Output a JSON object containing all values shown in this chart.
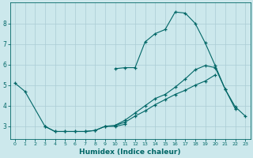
{
  "xlabel": "Humidex (Indice chaleur)",
  "bg_color": "#cce8ec",
  "grid_color": "#aaccd4",
  "line_color": "#006666",
  "x_data": [
    0,
    1,
    2,
    3,
    4,
    5,
    6,
    7,
    8,
    9,
    10,
    11,
    12,
    13,
    14,
    15,
    16,
    17,
    18,
    19,
    20,
    21,
    22,
    23
  ],
  "line1": [
    5.1,
    4.7,
    null,
    3.0,
    2.75,
    2.75,
    2.75,
    2.75,
    2.8,
    3.0,
    3.0,
    3.1,
    null,
    null,
    null,
    null,
    null,
    null,
    null,
    null,
    null,
    null,
    null,
    null
  ],
  "line2": [
    null,
    null,
    null,
    3.0,
    2.75,
    2.75,
    2.75,
    2.75,
    2.8,
    3.0,
    3.05,
    3.2,
    3.5,
    3.75,
    4.05,
    4.3,
    4.55,
    4.75,
    5.0,
    5.2,
    5.5,
    null,
    null,
    null
  ],
  "line3": [
    null,
    null,
    null,
    null,
    null,
    null,
    null,
    null,
    null,
    null,
    3.05,
    3.3,
    3.65,
    4.0,
    4.35,
    4.55,
    4.9,
    5.3,
    5.75,
    5.95,
    5.85,
    4.8,
    3.95,
    3.5
  ],
  "line4": [
    null,
    null,
    null,
    null,
    null,
    null,
    null,
    null,
    null,
    null,
    5.8,
    5.85,
    5.85,
    7.1,
    7.5,
    7.7,
    8.55,
    8.5,
    8.0,
    7.05,
    5.95,
    4.8,
    3.85,
    null
  ],
  "xlim": [
    -0.5,
    23.5
  ],
  "ylim": [
    2.4,
    9.0
  ],
  "yticks": [
    3,
    4,
    5,
    6,
    7,
    8
  ],
  "xticks": [
    0,
    1,
    2,
    3,
    4,
    5,
    6,
    7,
    8,
    9,
    10,
    11,
    12,
    13,
    14,
    15,
    16,
    17,
    18,
    19,
    20,
    21,
    22,
    23
  ]
}
